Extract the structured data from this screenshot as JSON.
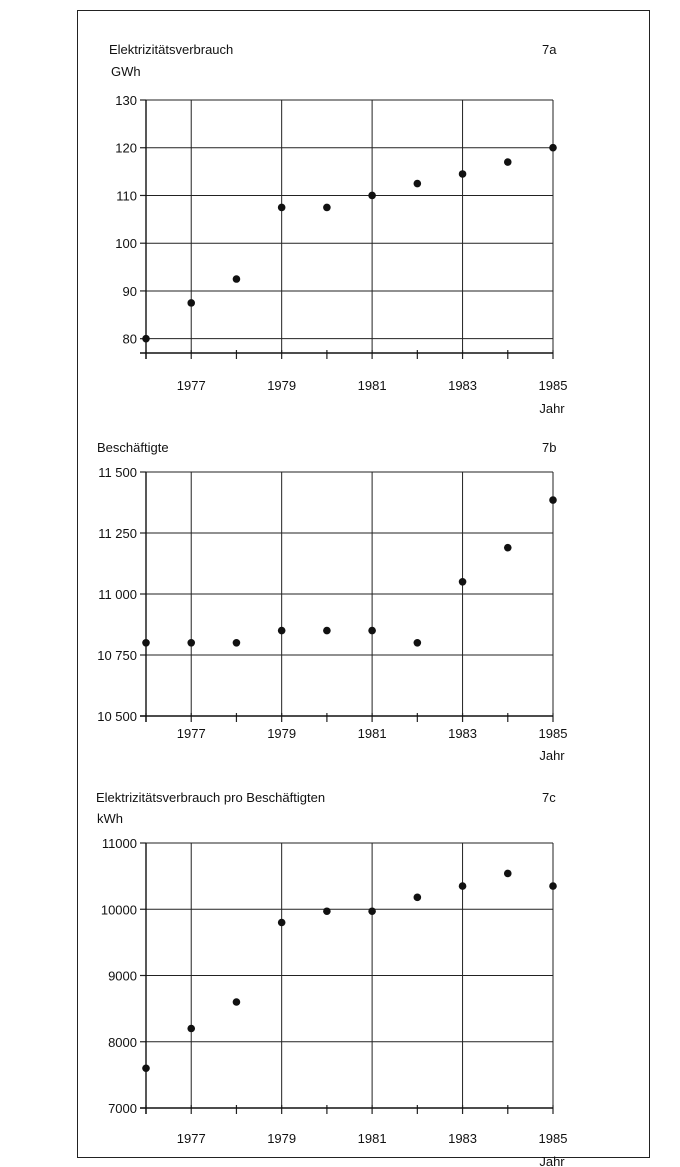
{
  "chart_data": [
    {
      "type": "scatter",
      "panel_label": "7a",
      "title": "Elektrizitätsverbrauch",
      "ylabel": "GWh",
      "xlabel": "Jahr",
      "x": [
        1976,
        1977,
        1978,
        1979,
        1980,
        1981,
        1982,
        1983,
        1984,
        1985
      ],
      "y": [
        80,
        87.5,
        92.5,
        107.5,
        107.5,
        110,
        112.5,
        114.5,
        117,
        120
      ],
      "xlim": [
        1976,
        1985
      ],
      "ylim": [
        77,
        130
      ],
      "xticks": [
        1977,
        1979,
        1981,
        1983,
        1985
      ],
      "xtick_labels": [
        "1977",
        "1979",
        "1981",
        "1983",
        "1985"
      ],
      "yticks": [
        80,
        90,
        100,
        110,
        120,
        130
      ],
      "ytick_labels": [
        "80",
        "90",
        "100",
        "110",
        "120",
        "130"
      ],
      "grid": true
    },
    {
      "type": "scatter",
      "panel_label": "7b",
      "title": "Beschäftigte",
      "ylabel": "",
      "xlabel": "Jahr",
      "x": [
        1976,
        1977,
        1978,
        1979,
        1980,
        1981,
        1982,
        1983,
        1984,
        1985
      ],
      "y": [
        10800,
        10800,
        10800,
        10850,
        10850,
        10850,
        10800,
        11050,
        11190,
        11385
      ],
      "xlim": [
        1976,
        1985
      ],
      "ylim": [
        10500,
        11500
      ],
      "xticks": [
        1977,
        1979,
        1981,
        1983,
        1985
      ],
      "xtick_labels": [
        "1977",
        "1979",
        "1981",
        "1983",
        "1985"
      ],
      "yticks": [
        10500,
        10750,
        11000,
        11250,
        11500
      ],
      "ytick_labels": [
        "10 500",
        "10 750",
        "11 000",
        "11 250",
        "11 500"
      ],
      "grid": true
    },
    {
      "type": "scatter",
      "panel_label": "7c",
      "title": "Elektrizitätsverbrauch pro Beschäftigten",
      "ylabel": "kWh",
      "xlabel": "Jahr",
      "x": [
        1976,
        1977,
        1978,
        1979,
        1980,
        1981,
        1982,
        1983,
        1984,
        1985
      ],
      "y": [
        7600,
        8200,
        8600,
        9800,
        9970,
        9970,
        10180,
        10350,
        10540,
        10350
      ],
      "xlim": [
        1976,
        1985
      ],
      "ylim": [
        7000,
        11000
      ],
      "xticks": [
        1977,
        1979,
        1981,
        1983,
        1985
      ],
      "xtick_labels": [
        "1977",
        "1979",
        "1981",
        "1983",
        "1985"
      ],
      "yticks": [
        7000,
        8000,
        9000,
        10000,
        11000
      ],
      "ytick_labels": [
        "7000",
        "8000",
        "9000",
        "10000",
        "11000"
      ],
      "grid": true
    }
  ]
}
